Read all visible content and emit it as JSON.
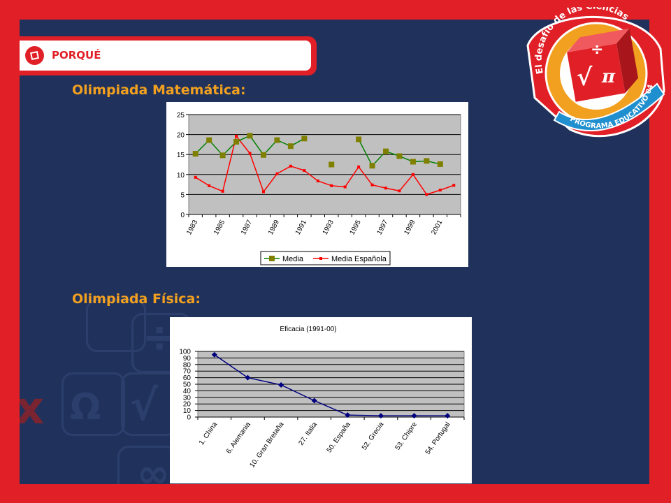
{
  "tab": {
    "label": "PORQUÉ"
  },
  "headings": {
    "math": "Olimpiada Matemática:",
    "physics": "Olimpiada Física:"
  },
  "logo": {
    "top_text": "El desafío de las Ciencias",
    "bottom_text": "PROGRAMA EDUCATIVO 04",
    "symbols": [
      "√",
      "π",
      "÷"
    ]
  },
  "background_symbols": [
    "÷",
    "x",
    "Ω",
    "√",
    "∞"
  ],
  "colors": {
    "frame": "#e11f26",
    "panel": "#20325c",
    "heading": "#f2a01f",
    "plot_bg": "#c0c0c0",
    "media": "#008000",
    "media_marker": "#808000",
    "media_espanola": "#ff0000",
    "eficacia": "#000080"
  },
  "chart_data": [
    {
      "type": "line",
      "title": "",
      "x": [
        1983,
        1984,
        1985,
        1986,
        1987,
        1988,
        1989,
        1990,
        1991,
        1992,
        1993,
        1994,
        1995,
        1996,
        1997,
        1998,
        1999,
        2000,
        2001,
        2002
      ],
      "x_tick_labels": [
        "1983",
        "1985",
        "1987",
        "1989",
        "1991",
        "1993",
        "1995",
        "1997",
        "1999",
        "2001"
      ],
      "ylim": [
        0,
        25
      ],
      "y_ticks": [
        "0",
        "5",
        "10",
        "15",
        "20",
        "25"
      ],
      "grid": true,
      "legend": "bottom",
      "series": [
        {
          "name": "Media",
          "values": [
            15.2,
            18.6,
            14.8,
            18.2,
            19.7,
            14.9,
            18.6,
            17.1,
            19.0,
            null,
            12.5,
            null,
            18.8,
            12.2,
            15.8,
            14.6,
            13.2,
            13.4,
            12.6,
            null
          ]
        },
        {
          "name": "Media Española",
          "values": [
            9.3,
            7.2,
            5.8,
            19.6,
            15.3,
            5.7,
            10.2,
            12.1,
            11.0,
            8.4,
            7.2,
            6.9,
            11.9,
            7.4,
            6.6,
            5.9,
            10.0,
            5.0,
            6.1,
            7.3
          ]
        }
      ]
    },
    {
      "type": "line",
      "title": "Eficacia (1991-00)",
      "categories": [
        "1. China",
        "6. Alemania",
        "10. Gran Bretaña",
        "27. Italia",
        "50. España",
        "52. Grecia",
        "53. Chipre",
        "54. Portugal"
      ],
      "ylim": [
        0,
        100
      ],
      "y_ticks": [
        "0",
        "10",
        "20",
        "30",
        "40",
        "50",
        "60",
        "70",
        "80",
        "90",
        "100"
      ],
      "grid": true,
      "legend": "none",
      "series": [
        {
          "name": "",
          "values": [
            95,
            60,
            49,
            25,
            3,
            2,
            2,
            2
          ]
        }
      ]
    }
  ]
}
